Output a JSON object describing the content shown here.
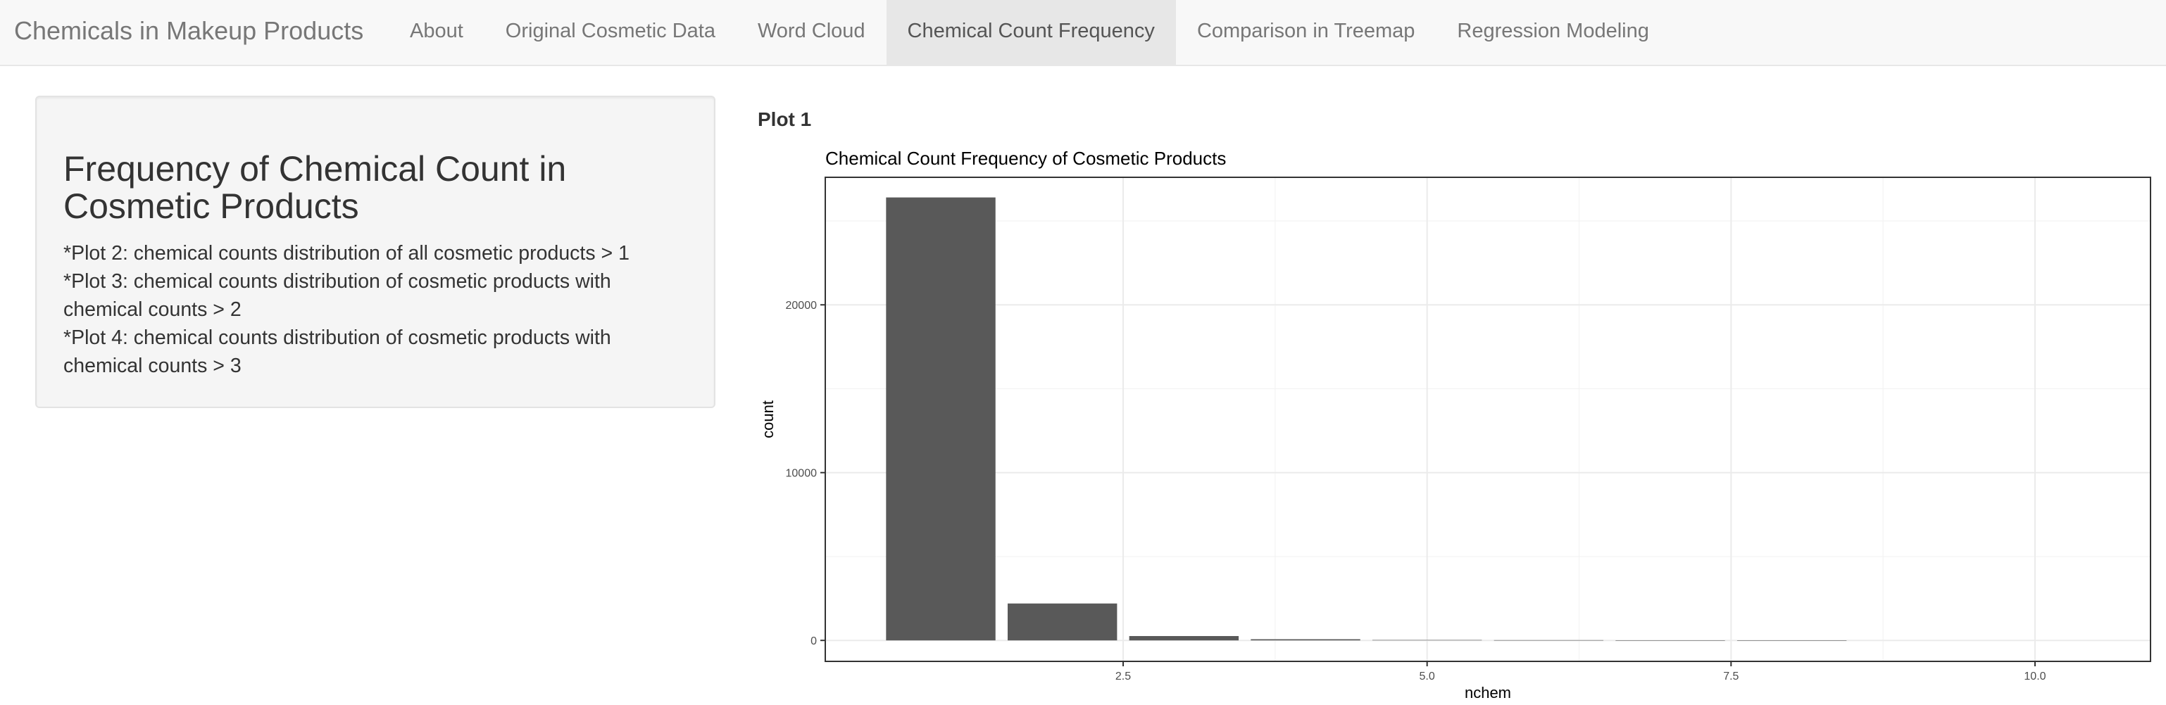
{
  "app": {
    "title": "Chemicals in Makeup Products"
  },
  "nav": {
    "tabs": [
      {
        "label": "About",
        "active": false
      },
      {
        "label": "Original Cosmetic Data",
        "active": false
      },
      {
        "label": "Word Cloud",
        "active": false
      },
      {
        "label": "Chemical Count Frequency",
        "active": true
      },
      {
        "label": "Comparison in Treemap",
        "active": false
      },
      {
        "label": "Regression Modeling",
        "active": false
      }
    ]
  },
  "sidebar": {
    "heading": "Frequency of Chemical Count in Cosmetic Products",
    "notes": [
      "*Plot 2: chemical counts distribution of all cosmetic products > 1",
      "*Plot 3: chemical counts distribution of cosmetic products with chemical counts > 2",
      "*Plot 4: chemical counts distribution of cosmetic products with chemical counts > 3"
    ]
  },
  "main": {
    "plot_heading": "Plot 1"
  },
  "colors": {
    "bar": "#595959",
    "panel_border": "#333333",
    "grid": "#ebebeb",
    "active_tab": "#e7e7e7"
  },
  "chart_data": {
    "type": "bar",
    "title": "Chemical Count Frequency of Cosmetic Products",
    "xlabel": "nchem",
    "ylabel": "count",
    "x": [
      1,
      2,
      3,
      4,
      5,
      6,
      7,
      8
    ],
    "values": [
      26400,
      2200,
      260,
      70,
      25,
      15,
      8,
      5
    ],
    "xlim": [
      0.05,
      10.95
    ],
    "ylim": [
      -1250,
      27600
    ],
    "x_ticks": [
      2.5,
      5.0,
      7.5,
      10.0
    ],
    "x_tick_labels": [
      "2.5",
      "5.0",
      "7.5",
      "10.0"
    ],
    "y_ticks": [
      0,
      10000,
      20000
    ],
    "y_tick_labels": [
      "0",
      "10000",
      "20000"
    ],
    "grid": true,
    "legend": "none"
  }
}
